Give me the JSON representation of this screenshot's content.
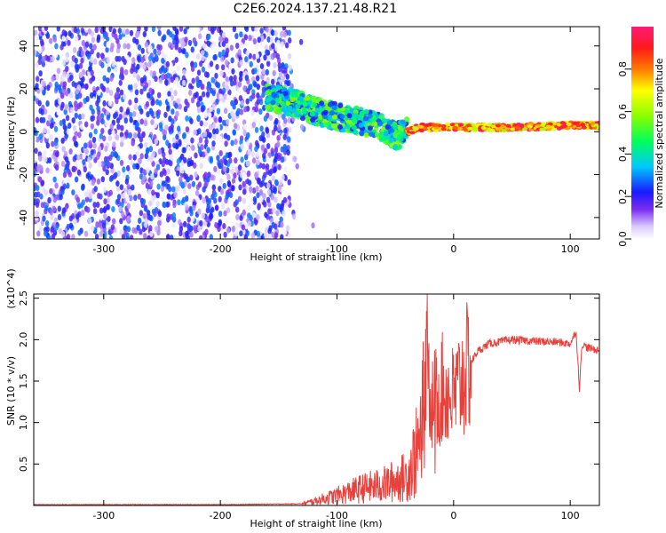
{
  "title": "C2E6.2024.137.21.48.R21",
  "chart_data": [
    {
      "type": "heatmap",
      "xlabel": "Height of straight line (km)",
      "ylabel": "Frequency (Hz)",
      "xlim": [
        -360,
        125
      ],
      "ylim": [
        -50,
        49
      ],
      "xticks": [
        "-300",
        "-200",
        "-100",
        "0",
        "100"
      ],
      "yticks": [
        "40",
        "20",
        "0",
        "-20",
        "-40"
      ],
      "xtick_values": [
        -300,
        -200,
        -100,
        0,
        100
      ],
      "ytick_values": [
        40,
        20,
        0,
        -20,
        -40
      ],
      "colorbar": {
        "label": "Normalized spectral amplitude",
        "range": [
          0,
          1
        ],
        "ticks": [
          "0.0",
          "0.2",
          "0.4",
          "0.6",
          "0.8"
        ],
        "tick_values": [
          0.0,
          0.2,
          0.4,
          0.6,
          0.8
        ]
      },
      "regions": [
        {
          "x": [
            -360,
            -140
          ],
          "y": [
            -50,
            49
          ],
          "amplitude": [
            0.0,
            0.3
          ]
        },
        {
          "x": [
            -160,
            -40
          ],
          "y": [
            -16,
            20
          ],
          "amplitude": [
            0.2,
            0.6
          ]
        },
        {
          "x": [
            -40,
            125
          ],
          "y": [
            0,
            4
          ],
          "amplitude": [
            0.6,
            1.0
          ]
        }
      ],
      "ridge": [
        [
          -160,
          16
        ],
        [
          -140,
          14
        ],
        [
          -120,
          10
        ],
        [
          -100,
          7
        ],
        [
          -80,
          5
        ],
        [
          -60,
          2
        ],
        [
          -50,
          -2
        ],
        [
          -40,
          0
        ],
        [
          -30,
          2
        ],
        [
          0,
          2
        ],
        [
          50,
          2
        ],
        [
          100,
          3
        ],
        [
          125,
          3
        ]
      ]
    },
    {
      "type": "line",
      "xlabel": "Height of straight line (km)",
      "ylabel": "SNR (10 * v/v)",
      "y_multiplier": "(x10^4)",
      "xlim": [
        -360,
        125
      ],
      "ylim": [
        0,
        2.55
      ],
      "xticks": [
        "-300",
        "-200",
        "-100",
        "0",
        "100"
      ],
      "yticks": [
        "2.5",
        "2.0",
        "1.5",
        "1.0",
        "0.5"
      ],
      "xtick_values": [
        -300,
        -200,
        -100,
        0,
        100
      ],
      "ytick_values": [
        2.5,
        2.0,
        1.5,
        1.0,
        0.5
      ],
      "color": "#e8413c",
      "series": [
        {
          "x": [
            -360,
            -300,
            -200,
            -130,
            -120,
            -100,
            -80,
            -60,
            -40,
            -30,
            -25,
            -22,
            -20,
            -15,
            -10,
            0,
            10,
            20,
            30,
            50,
            70,
            90,
            100,
            105,
            108,
            110,
            115,
            125
          ],
          "y": [
            0.01,
            0.01,
            0.01,
            0.02,
            0.05,
            0.12,
            0.2,
            0.25,
            0.35,
            0.7,
            1.5,
            2.5,
            1.2,
            1.3,
            1.4,
            1.3,
            1.6,
            1.85,
            1.95,
            2.0,
            1.98,
            1.97,
            1.95,
            2.1,
            1.4,
            1.95,
            1.9,
            1.87
          ]
        }
      ]
    }
  ]
}
